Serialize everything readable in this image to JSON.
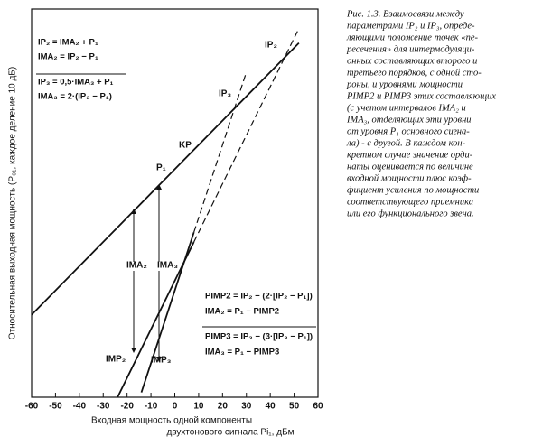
{
  "chart_data": {
    "type": "line",
    "ylabel": "Относительная выходная мощность (P₀₁, каждое деление 10 дБ)",
    "xlabel": [
      "Входная мощность одной компоненты",
      "двухтонового сигнала Pi₁, дБм"
    ],
    "xlim": [
      -60,
      60
    ],
    "xticks": [
      -60,
      -50,
      -40,
      -30,
      -20,
      -10,
      0,
      10,
      20,
      30,
      40,
      50,
      60
    ],
    "ylim": [
      0,
      160
    ],
    "grid": false,
    "series": [
      {
        "name": "P₁",
        "color": "#111111",
        "dash": false,
        "x": [
          -60,
          52
        ],
        "values": [
          34,
          146
        ]
      },
      {
        "name": "IMP₂",
        "color": "#111111",
        "dash": false,
        "x": [
          -24,
          8
        ],
        "values": [
          0,
          64
        ]
      },
      {
        "name": "IMP₂",
        "color": "#111111",
        "dash": true,
        "x": [
          8,
          52
        ],
        "values": [
          64,
          152
        ]
      },
      {
        "name": "IMP₃",
        "color": "#111111",
        "dash": false,
        "x": [
          -14,
          8
        ],
        "values": [
          2,
          68
        ]
      },
      {
        "name": "IMP₃",
        "color": "#111111",
        "dash": true,
        "x": [
          8,
          30
        ],
        "values": [
          68,
          134
        ]
      }
    ],
    "annotations": [
      "IP₂",
      "IP₃",
      "KP",
      "P₁",
      "IMA₂",
      "IMA₃",
      "IMP₂",
      "IMP₃"
    ],
    "formulas_top": [
      "IP₂ = IMA₂ + P₁",
      "IMA₂ = IP₂ − P₁",
      "IP₃ = 0,5·IMA₃ + P₁",
      "IMA₃ = 2·(IP₃ − P₁)"
    ],
    "formulas_bottom": [
      "PIMP2 = IP₂ − (2·[IP₂ − P₁])",
      "IMA₂ = P₁ − PIMP2",
      "PIMP3 = IP₃ − (3·[IP₃ − P₁])",
      "IMA₃ = P₁ − PIMP3"
    ],
    "caption": [
      "Рис. 1.3. Взаимосвязи между",
      "параметрами IP₂ и IP₃, опреде-",
      "ляющими положение точек «пе-",
      "ресечения» для интермодуляци-",
      "онных составляющих второго и",
      "третьего порядков, с одной сто-",
      "роны, и уровнями мощности",
      "PIMP2 и PIMP3 этих составляющих",
      "(с учетом интервалов IMA₂ и",
      "IMA₃, отделяющих эти уровни",
      "от уровня P₁ основного сигна-",
      "ла) - с другой. В каждом кон-",
      "кретном случае значение орди-",
      "наты оценивается по величине",
      "входной мощности плюс коэф-",
      "фициент усиления по мощности",
      "соответствующего приемника",
      "или его функционального звена."
    ]
  }
}
